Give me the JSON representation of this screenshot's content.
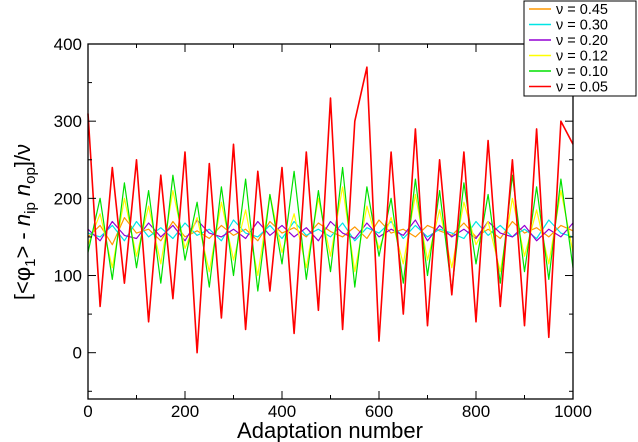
{
  "chart_data": {
    "type": "line",
    "title": "",
    "xlabel": "Adaptation number",
    "ylabel_parts": [
      "[<φ",
      "1",
      "> - ",
      "n",
      "ip",
      " ",
      "n",
      "op",
      "]/ν"
    ],
    "xlim": [
      0,
      1000
    ],
    "ylim": [
      -60,
      400
    ],
    "x_ticks": [
      0,
      200,
      400,
      600,
      800,
      1000
    ],
    "x_tick_labels": [
      "0",
      "200",
      "400",
      "600",
      "800",
      "1000"
    ],
    "y_ticks": [
      0,
      100,
      200,
      300,
      400
    ],
    "y_tick_labels": [
      "0",
      "100",
      "200",
      "300",
      "400"
    ],
    "grid": false,
    "legend_position": "top-right",
    "x": [
      0,
      25,
      50,
      75,
      100,
      125,
      150,
      175,
      200,
      225,
      250,
      275,
      300,
      325,
      350,
      375,
      400,
      425,
      450,
      475,
      500,
      525,
      550,
      575,
      600,
      625,
      650,
      675,
      700,
      725,
      750,
      775,
      800,
      825,
      850,
      875,
      900,
      925,
      950,
      975,
      1000
    ],
    "series": [
      {
        "name": "ν = 0.45",
        "color": "#ff9900",
        "values": [
          150,
          165,
          140,
          175,
          155,
          160,
          145,
          170,
          150,
          158,
          148,
          165,
          152,
          160,
          145,
          170,
          155,
          162,
          150,
          168,
          157,
          150,
          163,
          148,
          172,
          155,
          160,
          150,
          165,
          158,
          152,
          168,
          150,
          160,
          148,
          170,
          155,
          162,
          150,
          165,
          158
        ]
      },
      {
        "name": "ν = 0.30",
        "color": "#00e5e5",
        "values": [
          155,
          150,
          165,
          145,
          170,
          150,
          162,
          148,
          168,
          152,
          160,
          145,
          172,
          155,
          150,
          165,
          148,
          170,
          152,
          160,
          150,
          168,
          145,
          162,
          155,
          170,
          148,
          165,
          150,
          160,
          155,
          148,
          170,
          152,
          165,
          150,
          160,
          148,
          172,
          155,
          150
        ]
      },
      {
        "name": "ν = 0.20",
        "color": "#9400d3",
        "values": [
          160,
          145,
          170,
          152,
          148,
          168,
          150,
          165,
          145,
          172,
          155,
          150,
          160,
          148,
          170,
          152,
          165,
          150,
          162,
          145,
          170,
          155,
          148,
          168,
          150,
          160,
          152,
          172,
          145,
          165,
          150,
          160,
          148,
          170,
          155,
          150,
          165,
          145,
          160,
          150,
          168
        ]
      },
      {
        "name": "ν = 0.12",
        "color": "#ffff00",
        "values": [
          140,
          180,
          110,
          200,
          125,
          190,
          115,
          210,
          135,
          175,
          105,
          195,
          120,
          185,
          100,
          205,
          130,
          180,
          110,
          200,
          125,
          215,
          105,
          190,
          135,
          175,
          115,
          205,
          120,
          185,
          110,
          195,
          140,
          170,
          105,
          200,
          125,
          185,
          115,
          210,
          130
        ]
      },
      {
        "name": "ν = 0.10",
        "color": "#00e000",
        "values": [
          130,
          200,
          95,
          220,
          110,
          210,
          90,
          230,
          120,
          195,
          85,
          215,
          100,
          225,
          80,
          205,
          115,
          235,
          95,
          210,
          105,
          240,
          85,
          215,
          125,
          200,
          90,
          225,
          100,
          210,
          80,
          220,
          115,
          205,
          90,
          230,
          105,
          215,
          95,
          225,
          110
        ]
      },
      {
        "name": "ν = 0.05",
        "color": "#ff0000",
        "values": [
          310,
          60,
          240,
          90,
          250,
          40,
          230,
          70,
          260,
          0,
          245,
          45,
          270,
          30,
          235,
          80,
          240,
          25,
          260,
          55,
          330,
          30,
          300,
          370,
          15,
          260,
          50,
          290,
          35,
          250,
          75,
          260,
          40,
          275,
          60,
          250,
          35,
          290,
          20,
          300,
          270
        ]
      }
    ]
  }
}
